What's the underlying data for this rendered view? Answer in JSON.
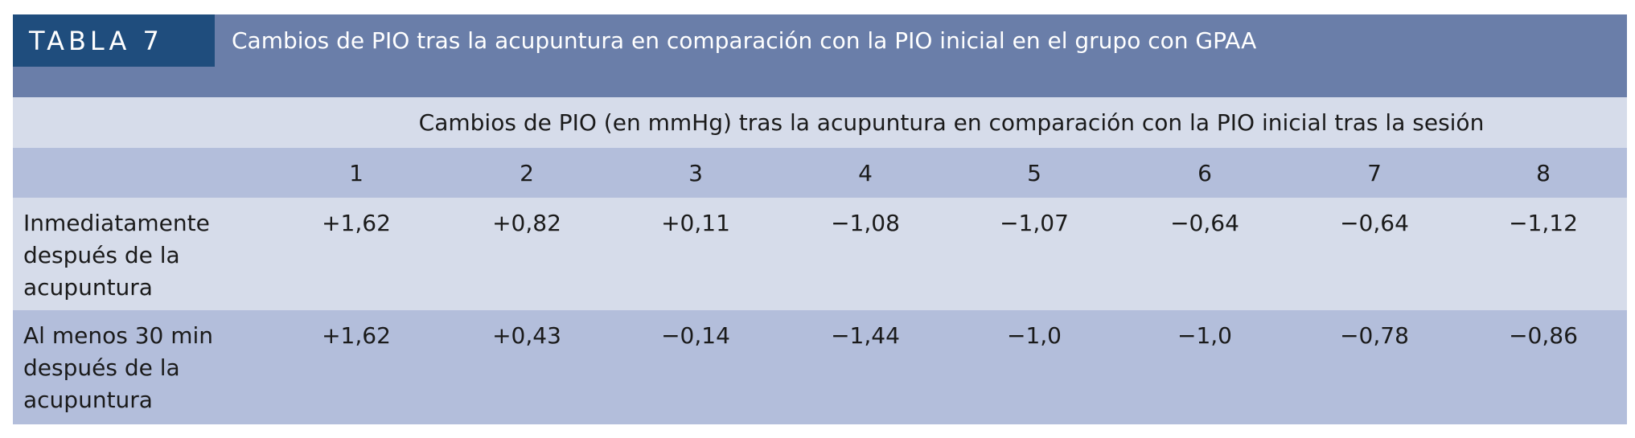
{
  "header": {
    "label": "TABLA 7",
    "title": "Cambios de PIO tras la acupuntura en comparación con la PIO inicial en el grupo con GPAA"
  },
  "table": {
    "group_header": "Cambios de PIO (en mmHg) tras la acupuntura en comparación con la PIO inicial tras la sesión",
    "columns": [
      "1",
      "2",
      "3",
      "4",
      "5",
      "6",
      "7",
      "8"
    ],
    "rows": [
      {
        "label": "Inmediatamente después de la acupuntura",
        "values": [
          "+1,62",
          "+0,82",
          "+0,11",
          "−1,08",
          "−1,07",
          "−0,64",
          "−0,64",
          "−1,12"
        ]
      },
      {
        "label": "Al menos 30 min después de la acupuntura",
        "values": [
          "+1,62",
          "+0,43",
          "−0,14",
          "−1,44",
          "−1,0",
          "−1,0",
          "−0,78",
          "−0,86"
        ]
      }
    ]
  }
}
